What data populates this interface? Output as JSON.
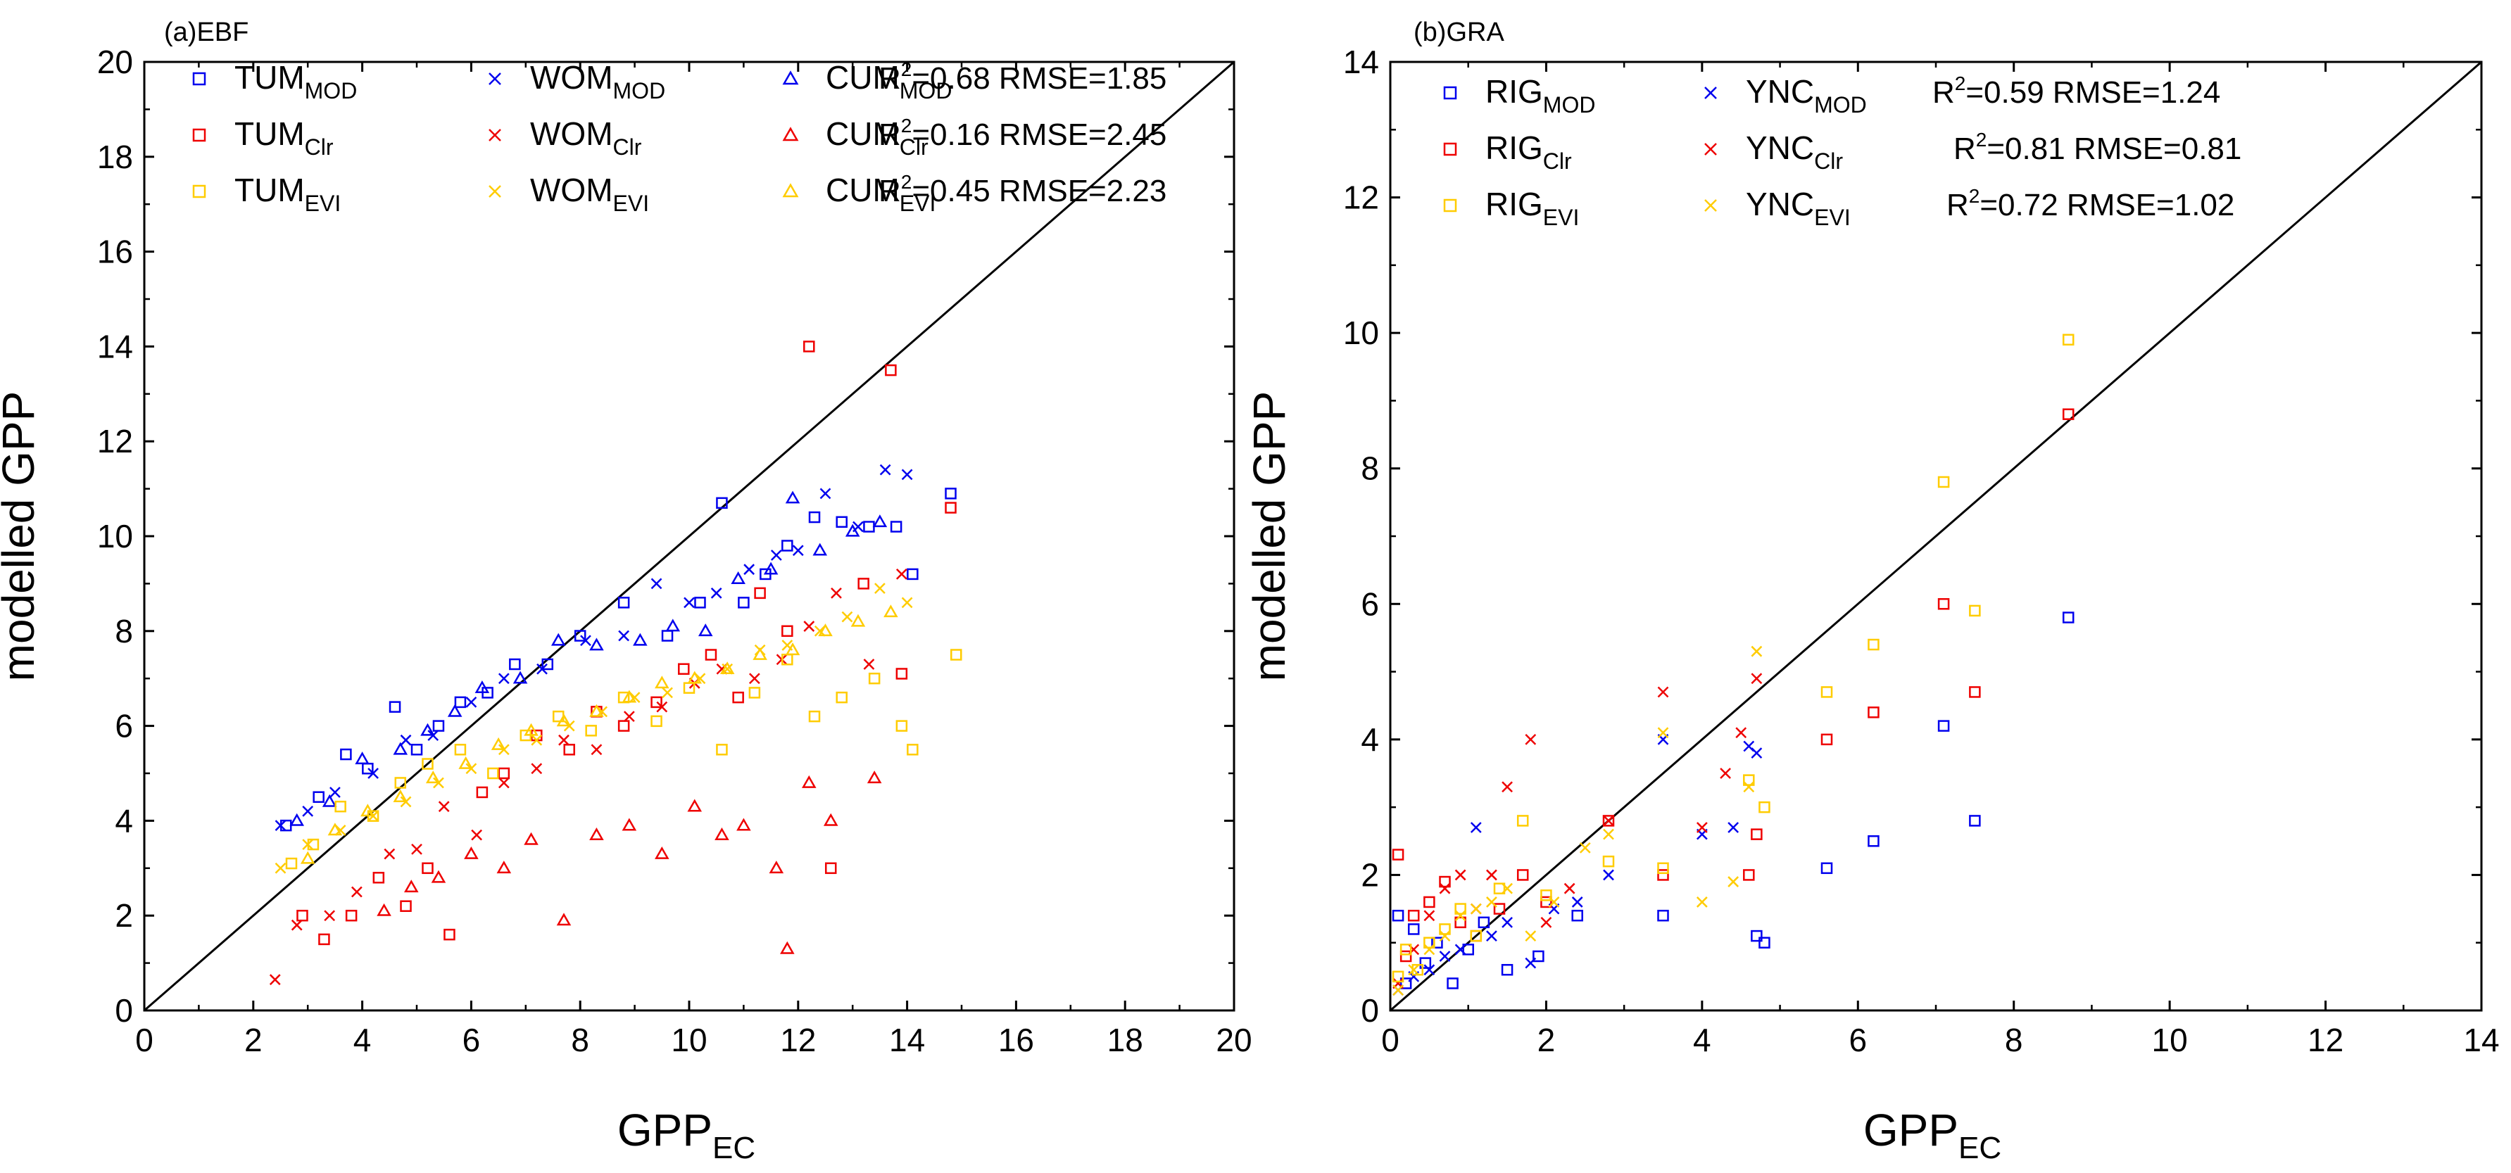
{
  "colors": {
    "MOD": "#0000ee",
    "Clr": "#ee0000",
    "EVI": "#ffcc00",
    "axis": "#000000"
  },
  "chart_data": [
    {
      "type": "scatter",
      "title": "(a)EBF",
      "xlabel": "GPP",
      "xlabel_sub": "EC",
      "ylabel": "modelled GPP",
      "xlim": [
        0,
        20
      ],
      "ylim": [
        0,
        20
      ],
      "xticks": [
        0,
        2,
        4,
        6,
        8,
        10,
        12,
        14,
        16,
        18,
        20
      ],
      "yticks": [
        0,
        2,
        4,
        6,
        8,
        10,
        12,
        14,
        16,
        18,
        20
      ],
      "one_to_one_line": true,
      "legend": [
        {
          "site": "TUM",
          "sub": "MOD",
          "marker": "square",
          "color_key": "MOD"
        },
        {
          "site": "WOM",
          "sub": "MOD",
          "marker": "cross",
          "color_key": "MOD"
        },
        {
          "site": "CUM",
          "sub": "MOD",
          "marker": "triangle",
          "color_key": "MOD"
        },
        {
          "site": "TUM",
          "sub": "Clr",
          "marker": "square",
          "color_key": "Clr"
        },
        {
          "site": "WOM",
          "sub": "Clr",
          "marker": "cross",
          "color_key": "Clr"
        },
        {
          "site": "CUM",
          "sub": "Clr",
          "marker": "triangle",
          "color_key": "Clr"
        },
        {
          "site": "TUM",
          "sub": "EVI",
          "marker": "square",
          "color_key": "EVI"
        },
        {
          "site": "WOM",
          "sub": "EVI",
          "marker": "cross",
          "color_key": "EVI"
        },
        {
          "site": "CUM",
          "sub": "EVI",
          "marker": "triangle",
          "color_key": "EVI"
        }
      ],
      "stats": [
        {
          "label": "R",
          "sup": "2",
          "rest": "=0.68 RMSE=1.85"
        },
        {
          "label": "R",
          "sup": "2",
          "rest": "=0.16 RMSE=2.45"
        },
        {
          "label": "R",
          "sup": "2",
          "rest": "=0.45 RMSE=2.23"
        }
      ],
      "series": [
        {
          "name": "TUM_MOD",
          "marker": "square",
          "color_key": "MOD",
          "x": [
            2.6,
            3.2,
            3.7,
            4.1,
            4.6,
            5.0,
            5.4,
            5.8,
            6.3,
            6.8,
            7.4,
            8.0,
            8.8,
            9.6,
            10.2,
            10.6,
            11.0,
            11.4,
            11.8,
            12.3,
            12.8,
            13.3,
            13.8,
            14.1,
            14.8
          ],
          "y": [
            3.9,
            4.5,
            5.4,
            5.1,
            6.4,
            5.5,
            6.0,
            6.5,
            6.7,
            7.3,
            7.3,
            7.9,
            8.6,
            7.9,
            8.6,
            10.7,
            8.6,
            9.2,
            9.8,
            10.4,
            10.3,
            10.2,
            10.2,
            9.2,
            10.9
          ]
        },
        {
          "name": "WOM_MOD",
          "marker": "cross",
          "color_key": "MOD",
          "x": [
            2.5,
            3.0,
            3.5,
            4.2,
            4.8,
            5.3,
            6.0,
            6.6,
            7.3,
            8.1,
            8.8,
            9.4,
            10.0,
            10.5,
            11.1,
            11.6,
            12.0,
            12.5,
            13.1,
            13.6,
            14.0
          ],
          "y": [
            3.9,
            4.2,
            4.6,
            5.0,
            5.7,
            5.8,
            6.5,
            7.0,
            7.2,
            7.8,
            7.9,
            9.0,
            8.6,
            8.8,
            9.3,
            9.6,
            9.7,
            10.9,
            10.2,
            11.4,
            11.3
          ]
        },
        {
          "name": "CUM_MOD",
          "marker": "triangle",
          "color_key": "MOD",
          "x": [
            2.8,
            3.4,
            4.0,
            4.7,
            5.2,
            5.7,
            6.2,
            6.9,
            7.6,
            8.3,
            9.1,
            9.7,
            10.3,
            10.9,
            11.5,
            11.9,
            12.4,
            13.0,
            13.5
          ],
          "y": [
            4.0,
            4.4,
            5.3,
            5.5,
            5.9,
            6.3,
            6.8,
            7.0,
            7.8,
            7.7,
            7.8,
            8.1,
            8.0,
            9.1,
            9.3,
            10.8,
            9.7,
            10.1,
            10.3
          ]
        },
        {
          "name": "TUM_Clr",
          "marker": "square",
          "color_key": "Clr",
          "x": [
            2.9,
            3.3,
            3.8,
            4.3,
            4.8,
            5.2,
            5.6,
            6.2,
            6.6,
            7.2,
            7.8,
            8.3,
            8.8,
            9.4,
            9.9,
            10.4,
            10.9,
            11.3,
            11.8,
            12.2,
            12.6,
            13.2,
            13.7,
            13.9,
            14.8
          ],
          "y": [
            2.0,
            1.5,
            2.0,
            2.8,
            2.2,
            3.0,
            1.6,
            4.6,
            5.0,
            5.8,
            5.5,
            6.3,
            6.0,
            6.5,
            7.2,
            7.5,
            6.6,
            8.8,
            8.0,
            14.0,
            3.0,
            9.0,
            13.5,
            7.1,
            10.6
          ]
        },
        {
          "name": "WOM_Clr",
          "marker": "cross",
          "color_key": "Clr",
          "x": [
            2.4,
            2.8,
            3.4,
            3.9,
            4.5,
            5.0,
            5.5,
            6.1,
            6.6,
            7.2,
            7.7,
            8.3,
            8.9,
            9.5,
            10.1,
            10.6,
            11.2,
            11.7,
            12.2,
            12.7,
            13.3,
            13.9
          ],
          "y": [
            0.65,
            1.8,
            2.0,
            2.5,
            3.3,
            3.4,
            4.3,
            3.7,
            4.8,
            5.1,
            5.7,
            5.5,
            6.2,
            6.4,
            6.9,
            7.2,
            7.0,
            7.4,
            8.1,
            8.8,
            7.3,
            9.2
          ]
        },
        {
          "name": "CUM_Clr",
          "marker": "triangle",
          "color_key": "Clr",
          "x": [
            4.4,
            4.9,
            5.4,
            6.0,
            6.6,
            7.1,
            7.7,
            8.3,
            8.9,
            9.5,
            10.1,
            10.6,
            11.0,
            11.6,
            11.8,
            12.2,
            12.6,
            13.4
          ],
          "y": [
            2.1,
            2.6,
            2.8,
            3.3,
            3.0,
            3.6,
            1.9,
            3.7,
            3.9,
            3.3,
            4.3,
            3.7,
            3.9,
            3.0,
            1.3,
            4.8,
            4.0,
            4.9
          ]
        },
        {
          "name": "TUM_EVI",
          "marker": "square",
          "color_key": "EVI",
          "x": [
            2.7,
            3.1,
            3.6,
            4.2,
            4.7,
            5.2,
            5.8,
            6.4,
            7.0,
            7.6,
            8.2,
            8.8,
            9.4,
            10.0,
            10.6,
            11.2,
            11.8,
            12.3,
            12.8,
            13.4,
            13.9,
            14.1,
            14.9
          ],
          "y": [
            3.1,
            3.5,
            4.3,
            4.1,
            4.8,
            5.2,
            5.5,
            5.0,
            5.8,
            6.2,
            5.9,
            6.6,
            6.1,
            6.8,
            5.5,
            6.7,
            7.4,
            6.2,
            6.6,
            7.0,
            6.0,
            5.5,
            7.5
          ]
        },
        {
          "name": "WOM_EVI",
          "marker": "cross",
          "color_key": "EVI",
          "x": [
            2.5,
            3.0,
            3.6,
            4.2,
            4.8,
            5.4,
            6.0,
            6.6,
            7.2,
            7.8,
            8.4,
            9.0,
            9.6,
            10.2,
            10.7,
            11.3,
            11.8,
            12.4,
            12.9,
            13.5,
            14.0
          ],
          "y": [
            3.0,
            3.5,
            3.8,
            4.1,
            4.4,
            4.8,
            5.1,
            5.5,
            5.7,
            6.0,
            6.3,
            6.6,
            6.7,
            7.0,
            7.2,
            7.6,
            7.7,
            8.0,
            8.3,
            8.9,
            8.6
          ]
        },
        {
          "name": "CUM_EVI",
          "marker": "triangle",
          "color_key": "EVI",
          "x": [
            3.0,
            3.5,
            4.1,
            4.7,
            5.3,
            5.9,
            6.5,
            7.1,
            7.7,
            8.3,
            8.9,
            9.5,
            10.1,
            10.7,
            11.3,
            11.9,
            12.5,
            13.1,
            13.7
          ],
          "y": [
            3.2,
            3.8,
            4.2,
            4.5,
            4.9,
            5.2,
            5.6,
            5.9,
            6.1,
            6.3,
            6.6,
            6.9,
            7.0,
            7.2,
            7.5,
            7.6,
            8.0,
            8.2,
            8.4
          ]
        }
      ]
    },
    {
      "type": "scatter",
      "title": "(b)GRA",
      "xlabel": "GPP",
      "xlabel_sub": "EC",
      "ylabel": "modelled GPP",
      "xlim": [
        0,
        14
      ],
      "ylim": [
        0,
        14
      ],
      "xticks": [
        0,
        2,
        4,
        6,
        8,
        10,
        12,
        14
      ],
      "yticks": [
        0,
        2,
        4,
        6,
        8,
        10,
        12,
        14
      ],
      "one_to_one_line": true,
      "legend": [
        {
          "site": "RIG",
          "sub": "MOD",
          "marker": "square",
          "color_key": "MOD"
        },
        {
          "site": "YNC",
          "sub": "MOD",
          "marker": "cross",
          "color_key": "MOD"
        },
        {
          "site": "RIG",
          "sub": "Clr",
          "marker": "square",
          "color_key": "Clr"
        },
        {
          "site": "YNC",
          "sub": "Clr",
          "marker": "cross",
          "color_key": "Clr"
        },
        {
          "site": "RIG",
          "sub": "EVI",
          "marker": "square",
          "color_key": "EVI"
        },
        {
          "site": "YNC",
          "sub": "EVI",
          "marker": "cross",
          "color_key": "EVI"
        }
      ],
      "stats": [
        {
          "label": "R",
          "sup": "2",
          "rest": "=0.59 RMSE=1.24"
        },
        {
          "label": "R",
          "sup": "2",
          "rest": "=0.81 RMSE=0.81"
        },
        {
          "label": "R",
          "sup": "2",
          "rest": "=0.72 RMSE=1.02"
        }
      ],
      "series": [
        {
          "name": "RIG_MOD",
          "marker": "square",
          "color_key": "MOD",
          "x": [
            0.1,
            0.2,
            0.3,
            0.45,
            0.6,
            0.8,
            1.0,
            1.2,
            1.5,
            1.9,
            2.4,
            3.5,
            4.7,
            4.8,
            5.6,
            6.2,
            7.1,
            7.5,
            8.7
          ],
          "y": [
            1.4,
            0.4,
            1.2,
            0.7,
            1.0,
            0.4,
            0.9,
            1.3,
            0.6,
            0.8,
            1.4,
            1.4,
            1.1,
            1.0,
            2.1,
            2.5,
            4.2,
            2.8,
            5.8
          ]
        },
        {
          "name": "YNC_MOD",
          "marker": "cross",
          "color_key": "MOD",
          "x": [
            0.1,
            0.3,
            0.5,
            0.7,
            0.9,
            1.1,
            1.3,
            1.5,
            1.8,
            2.1,
            2.4,
            2.8,
            3.5,
            4.0,
            4.4,
            4.6,
            4.7
          ],
          "y": [
            0.3,
            0.5,
            0.6,
            0.8,
            0.9,
            2.7,
            1.1,
            1.3,
            0.7,
            1.5,
            1.6,
            2.0,
            4.0,
            2.6,
            2.7,
            3.9,
            3.8
          ]
        },
        {
          "name": "RIG_Clr",
          "marker": "square",
          "color_key": "Clr",
          "x": [
            0.1,
            0.2,
            0.3,
            0.5,
            0.7,
            0.9,
            1.1,
            1.4,
            1.7,
            2.0,
            2.8,
            3.5,
            4.6,
            4.7,
            5.6,
            6.2,
            7.1,
            7.5,
            8.7
          ],
          "y": [
            2.3,
            0.8,
            1.4,
            1.6,
            1.9,
            1.3,
            1.1,
            1.5,
            2.0,
            1.6,
            2.8,
            2.0,
            2.0,
            2.6,
            4.0,
            4.4,
            6.0,
            4.7,
            8.8
          ]
        },
        {
          "name": "YNC_Clr",
          "marker": "cross",
          "color_key": "Clr",
          "x": [
            0.1,
            0.3,
            0.5,
            0.7,
            0.9,
            1.1,
            1.3,
            1.5,
            1.8,
            2.0,
            2.3,
            2.8,
            3.5,
            4.0,
            4.3,
            4.5,
            4.7
          ],
          "y": [
            0.4,
            0.9,
            1.4,
            1.8,
            2.0,
            1.5,
            2.0,
            3.3,
            4.0,
            1.3,
            1.8,
            2.8,
            4.7,
            2.7,
            3.5,
            4.1,
            4.9
          ]
        },
        {
          "name": "RIG_EVI",
          "marker": "square",
          "color_key": "EVI",
          "x": [
            0.1,
            0.2,
            0.35,
            0.5,
            0.7,
            0.9,
            1.1,
            1.4,
            1.7,
            2.0,
            2.8,
            3.5,
            4.6,
            4.8,
            5.6,
            6.2,
            7.1,
            7.5,
            8.7
          ],
          "y": [
            0.5,
            0.9,
            0.6,
            1.0,
            1.2,
            1.5,
            1.1,
            1.8,
            2.8,
            1.7,
            2.2,
            2.1,
            3.4,
            3.0,
            4.7,
            5.4,
            7.8,
            5.9,
            9.9
          ]
        },
        {
          "name": "YNC_EVI",
          "marker": "cross",
          "color_key": "EVI",
          "x": [
            0.1,
            0.3,
            0.5,
            0.7,
            0.9,
            1.1,
            1.3,
            1.5,
            1.8,
            2.1,
            2.5,
            2.8,
            3.5,
            4.0,
            4.4,
            4.6,
            4.7
          ],
          "y": [
            0.3,
            0.6,
            0.9,
            1.1,
            1.4,
            1.5,
            1.6,
            1.8,
            1.1,
            1.6,
            2.4,
            2.6,
            4.1,
            1.6,
            1.9,
            3.3,
            5.3
          ]
        }
      ]
    }
  ]
}
